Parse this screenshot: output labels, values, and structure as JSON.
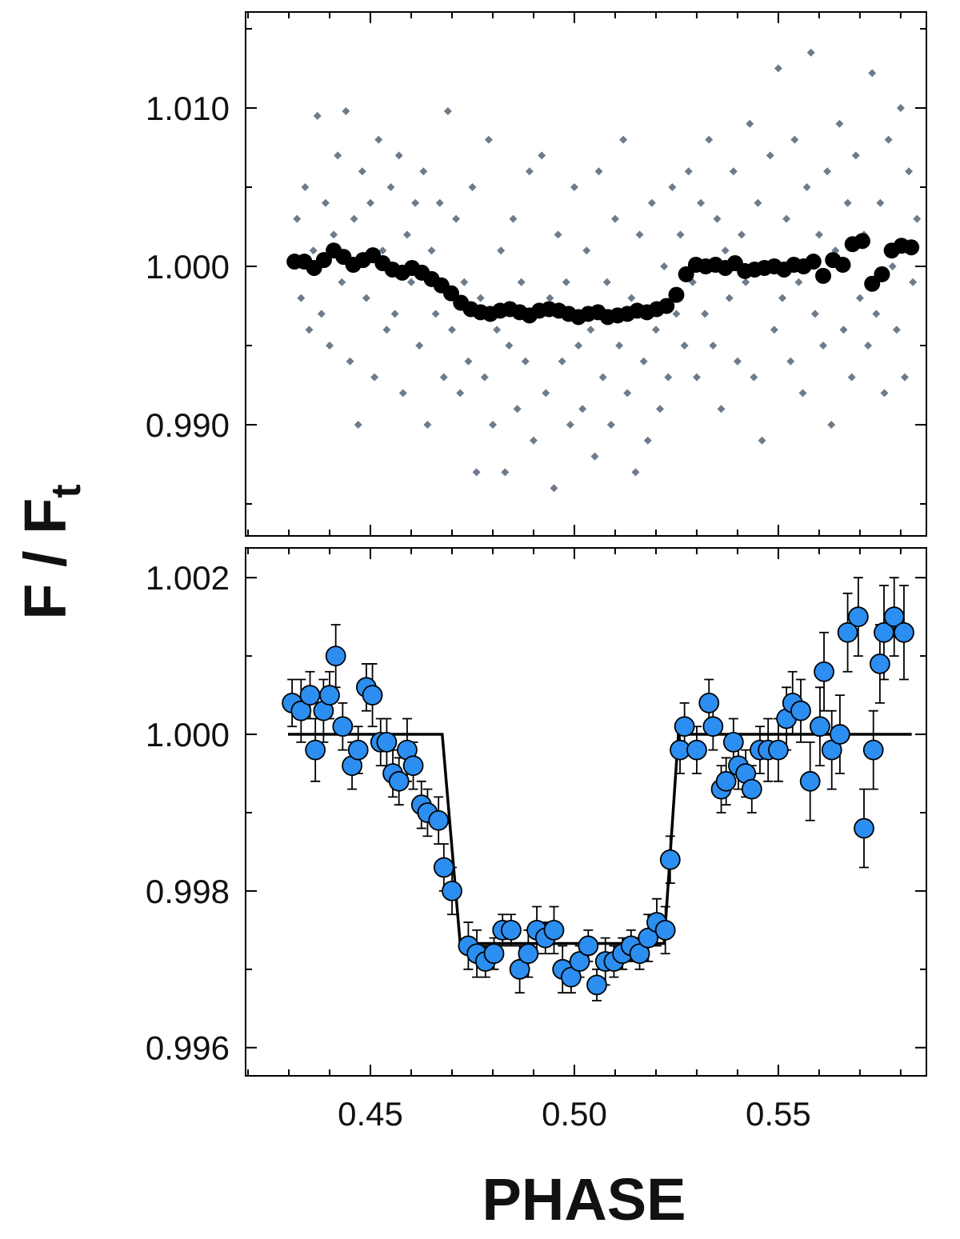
{
  "xlabel": "PHASE",
  "ylabel": {
    "main": "F / F",
    "subscript": "t"
  },
  "chart_data": [
    {
      "type": "scatter",
      "xlim": [
        0.4194,
        0.5863
      ],
      "ylim": [
        0.98298,
        1.01606
      ],
      "xticks": [
        0.45,
        0.5,
        0.55
      ],
      "show_xtick_labels": false,
      "x_minor_ticks": [
        0.42,
        0.43,
        0.44,
        0.46,
        0.47,
        0.48,
        0.49,
        0.51,
        0.52,
        0.53,
        0.54,
        0.56,
        0.57,
        0.58
      ],
      "yticks": [
        {
          "value": 1.01,
          "label": "1.010"
        },
        {
          "value": 1.0,
          "label": "1.000"
        },
        {
          "value": 0.99,
          "label": "0.990"
        }
      ],
      "y_minor_ticks": [
        1.015,
        1.005,
        0.995,
        0.985
      ],
      "series": [
        {
          "marker": "diamond",
          "color": "#6e7b8b",
          "x": [
            0.432,
            0.433,
            0.434,
            0.435,
            0.436,
            0.437,
            0.438,
            0.439,
            0.44,
            0.441,
            0.442,
            0.443,
            0.444,
            0.445,
            0.446,
            0.447,
            0.448,
            0.449,
            0.45,
            0.451,
            0.452,
            0.453,
            0.454,
            0.455,
            0.456,
            0.457,
            0.458,
            0.459,
            0.46,
            0.461,
            0.462,
            0.463,
            0.464,
            0.465,
            0.466,
            0.467,
            0.468,
            0.469,
            0.47,
            0.471,
            0.472,
            0.473,
            0.474,
            0.475,
            0.476,
            0.477,
            0.478,
            0.479,
            0.48,
            0.481,
            0.482,
            0.483,
            0.484,
            0.485,
            0.486,
            0.487,
            0.488,
            0.489,
            0.49,
            0.491,
            0.492,
            0.493,
            0.494,
            0.495,
            0.496,
            0.497,
            0.498,
            0.499,
            0.5,
            0.501,
            0.502,
            0.503,
            0.504,
            0.505,
            0.506,
            0.507,
            0.508,
            0.509,
            0.51,
            0.511,
            0.512,
            0.513,
            0.514,
            0.515,
            0.516,
            0.517,
            0.518,
            0.519,
            0.52,
            0.521,
            0.522,
            0.523,
            0.524,
            0.525,
            0.526,
            0.527,
            0.528,
            0.529,
            0.53,
            0.531,
            0.532,
            0.533,
            0.534,
            0.535,
            0.536,
            0.537,
            0.538,
            0.539,
            0.54,
            0.541,
            0.542,
            0.543,
            0.544,
            0.545,
            0.546,
            0.547,
            0.548,
            0.549,
            0.55,
            0.551,
            0.552,
            0.553,
            0.554,
            0.555,
            0.556,
            0.557,
            0.558,
            0.559,
            0.56,
            0.561,
            0.562,
            0.563,
            0.564,
            0.565,
            0.566,
            0.567,
            0.568,
            0.569,
            0.57,
            0.571,
            0.572,
            0.573,
            0.574,
            0.575,
            0.576,
            0.577,
            0.578,
            0.579,
            0.58,
            0.581,
            0.582,
            0.583,
            0.584
          ],
          "values": [
            1.003,
            0.998,
            1.005,
            0.996,
            1.001,
            1.0095,
            0.997,
            1.004,
            0.995,
            1.002,
            1.007,
            0.999,
            1.0098,
            0.994,
            1.003,
            0.99,
            1.006,
            0.998,
            1.004,
            0.993,
            1.008,
            1.001,
            0.996,
            1.005,
            0.997,
            1.007,
            0.992,
            1.002,
            0.999,
            1.004,
            0.995,
            1.006,
            0.99,
            1.001,
            0.997,
            1.004,
            0.993,
            1.0098,
            0.996,
            1.003,
            0.992,
            0.999,
            0.994,
            1.005,
            0.987,
            0.998,
            0.993,
            1.008,
            0.99,
            0.996,
            1.001,
            0.987,
            0.995,
            1.003,
            0.991,
            0.999,
            0.994,
            1.006,
            0.989,
            0.997,
            1.007,
            0.992,
            0.998,
            0.986,
            1.002,
            0.994,
            0.999,
            0.99,
            1.005,
            0.995,
            0.991,
            1.001,
            0.996,
            0.988,
            1.006,
            0.993,
            0.999,
            0.99,
            1.003,
            0.995,
            1.008,
            0.992,
            0.998,
            0.987,
            1.002,
            0.994,
            0.989,
            1.004,
            0.996,
            0.991,
            1.0,
            0.993,
            1.005,
            0.997,
            1.002,
            0.995,
            1.006,
            0.999,
            0.993,
            1.004,
            0.997,
            1.008,
            0.995,
            1.003,
            0.991,
            1.001,
            0.998,
            1.006,
            0.994,
            1.002,
            0.999,
            1.009,
            0.993,
            1.004,
            0.989,
            1.0,
            1.007,
            0.996,
            1.0125,
            0.998,
            1.003,
            0.994,
            1.008,
            0.999,
            0.992,
            1.005,
            1.0135,
            0.997,
            1.002,
            0.995,
            1.006,
            0.99,
            1.001,
            1.009,
            0.996,
            1.004,
            0.993,
            1.007,
            0.998,
            1.002,
            0.995,
            1.0122,
            0.997,
            1.004,
            0.992,
            1.008,
            1.0,
            0.996,
            1.01,
            0.993,
            1.006,
            0.999,
            1.003
          ]
        },
        {
          "marker": "circle",
          "color": "#000000",
          "x": [
            0.4314,
            0.4338,
            0.4362,
            0.4386,
            0.441,
            0.4434,
            0.4458,
            0.4482,
            0.4506,
            0.453,
            0.4554,
            0.4578,
            0.4602,
            0.4626,
            0.465,
            0.4674,
            0.4698,
            0.4722,
            0.4746,
            0.477,
            0.4794,
            0.4818,
            0.4842,
            0.4866,
            0.489,
            0.4914,
            0.4938,
            0.4962,
            0.4986,
            0.501,
            0.5034,
            0.5058,
            0.5082,
            0.5106,
            0.513,
            0.5154,
            0.5178,
            0.5202,
            0.5226,
            0.525,
            0.5274,
            0.5298,
            0.5322,
            0.5346,
            0.537,
            0.5394,
            0.5418,
            0.5442,
            0.5466,
            0.549,
            0.5514,
            0.5538,
            0.5562,
            0.5586,
            0.561,
            0.5634,
            0.5658,
            0.5682,
            0.5706,
            0.573,
            0.5754,
            0.5778,
            0.5802,
            0.5826
          ],
          "values": [
            1.0003,
            1.0003,
            0.9999,
            1.0004,
            1.001,
            1.0006,
            1.0001,
            1.0004,
            1.0007,
            1.0002,
            0.9998,
            0.9996,
            0.9999,
            0.9996,
            0.9992,
            0.9988,
            0.9983,
            0.9977,
            0.9973,
            0.9971,
            0.997,
            0.9972,
            0.9973,
            0.9971,
            0.9969,
            0.9972,
            0.9973,
            0.9972,
            0.997,
            0.9968,
            0.997,
            0.9971,
            0.9968,
            0.9969,
            0.997,
            0.9972,
            0.9971,
            0.9973,
            0.9975,
            0.9982,
            0.9995,
            1.0001,
            1.0,
            1.0001,
            0.9999,
            1.0002,
            0.9997,
            0.9998,
            0.9999,
            1.0,
            0.9998,
            1.0001,
            1.0,
            1.0003,
            0.9994,
            1.0004,
            1.0001,
            1.0014,
            1.0016,
            0.9989,
            0.9995,
            1.001,
            1.0013,
            1.0012
          ]
        }
      ]
    },
    {
      "type": "scatter",
      "xlim": [
        0.4194,
        0.5863
      ],
      "ylim": [
        0.99564,
        1.00238
      ],
      "xticks": [
        0.45,
        {
          "value": 0.5,
          "label": "0.50"
        },
        0.55
      ],
      "show_xtick_labels": true,
      "x_minor_ticks": [
        0.42,
        0.43,
        0.44,
        0.46,
        0.47,
        0.48,
        0.49,
        0.51,
        0.52,
        0.53,
        0.54,
        0.56,
        0.57,
        0.58
      ],
      "yticks": [
        1.002,
        {
          "value": 1.0,
          "label": "1.000"
        },
        0.998,
        0.996
      ],
      "y_minor_ticks": [
        1.001,
        0.999,
        0.997
      ],
      "series": [
        {
          "marker": "circle",
          "color": "#2b8ef0",
          "edgecolor": "#000000",
          "x": [
            0.4308,
            0.433,
            0.4352,
            0.4365,
            0.4385,
            0.44,
            0.4415,
            0.4432,
            0.4455,
            0.447,
            0.449,
            0.4505,
            0.4525,
            0.454,
            0.4555,
            0.457,
            0.459,
            0.4605,
            0.4625,
            0.464,
            0.4667,
            0.468,
            0.47,
            0.474,
            0.4761,
            0.4782,
            0.4803,
            0.4824,
            0.4845,
            0.4866,
            0.4887,
            0.4908,
            0.4929,
            0.495,
            0.4971,
            0.4992,
            0.5013,
            0.5034,
            0.5055,
            0.5076,
            0.5097,
            0.5118,
            0.5139,
            0.516,
            0.5181,
            0.5202,
            0.5223,
            0.5235,
            0.5259,
            0.527,
            0.53,
            0.533,
            0.534,
            0.536,
            0.5372,
            0.539,
            0.5402,
            0.542,
            0.5435,
            0.5455,
            0.5475,
            0.55,
            0.552,
            0.5535,
            0.5555,
            0.5578,
            0.5602,
            0.5612,
            0.5631,
            0.5651,
            0.567,
            0.5696,
            0.571,
            0.5733,
            0.5749,
            0.5759,
            0.5784,
            0.5808
          ],
          "values": [
            1.0004,
            1.0003,
            1.0005,
            0.9998,
            1.0003,
            1.0005,
            1.001,
            1.0001,
            0.9996,
            0.9998,
            1.0006,
            1.0005,
            0.9999,
            0.9999,
            0.9995,
            0.9994,
            0.9998,
            0.9996,
            0.9991,
            0.999,
            0.9989,
            0.9983,
            0.998,
            0.9973,
            0.9972,
            0.9971,
            0.9972,
            0.9975,
            0.9975,
            0.997,
            0.9972,
            0.9975,
            0.9974,
            0.9975,
            0.997,
            0.9969,
            0.9971,
            0.9973,
            0.9968,
            0.9971,
            0.9971,
            0.9972,
            0.9973,
            0.9972,
            0.9974,
            0.9976,
            0.9975,
            0.9984,
            0.9998,
            1.0001,
            0.9998,
            1.0004,
            1.0001,
            0.9993,
            0.9994,
            0.9999,
            0.9996,
            0.9995,
            0.9993,
            0.9998,
            0.9998,
            0.9998,
            1.0002,
            1.0004,
            1.0003,
            0.9994,
            1.0001,
            1.0008,
            0.9998,
            1.0,
            1.0013,
            1.0015,
            0.9988,
            0.9998,
            1.0009,
            1.0013,
            1.0015,
            1.0013
          ],
          "errors": [
            0.0003,
            0.0004,
            0.0003,
            0.0004,
            0.0004,
            0.0003,
            0.0004,
            0.0003,
            0.0003,
            0.0003,
            0.0003,
            0.0004,
            0.0003,
            0.0003,
            0.0003,
            0.0003,
            0.0004,
            0.0003,
            0.0003,
            0.0003,
            0.0003,
            0.0003,
            0.0003,
            0.0003,
            0.0003,
            0.0002,
            0.0002,
            0.0002,
            0.0002,
            0.0003,
            0.0003,
            0.0003,
            0.0002,
            0.0003,
            0.0003,
            0.0002,
            0.0002,
            0.0002,
            0.0002,
            0.0003,
            0.0002,
            0.0002,
            0.0002,
            0.0002,
            0.0003,
            0.0003,
            0.0003,
            0.0003,
            0.0003,
            0.0003,
            0.0003,
            0.0003,
            0.0003,
            0.0003,
            0.0003,
            0.0003,
            0.0003,
            0.0003,
            0.0003,
            0.0003,
            0.0004,
            0.0004,
            0.0004,
            0.0004,
            0.0004,
            0.0005,
            0.0005,
            0.0005,
            0.0005,
            0.0005,
            0.0005,
            0.0005,
            0.0005,
            0.0005,
            0.0005,
            0.0006,
            0.0005,
            0.0006
          ]
        },
        {
          "marker": "line",
          "color": "#000000",
          "x": [
            0.4298,
            0.4676,
            0.472,
            0.522,
            0.5255,
            0.5827
          ],
          "values": [
            1.0,
            1.0,
            0.99733,
            0.99733,
            1.0,
            1.0
          ]
        }
      ]
    }
  ]
}
